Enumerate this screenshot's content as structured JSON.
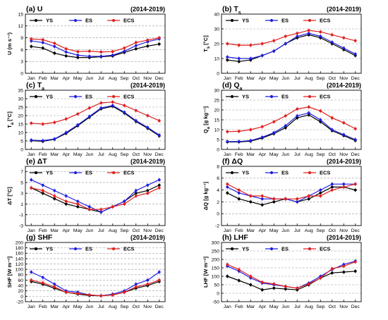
{
  "series_names": [
    "YS",
    "ES",
    "ECS"
  ],
  "colors": {
    "YS": "#000000",
    "ES": "#1f1fe0",
    "ECS": "#e02020"
  },
  "period": "(2014-2019)",
  "chart_data": [
    {
      "type": "line",
      "title": "(a) U",
      "ylabel": "U (m s⁻¹)",
      "ylim": [
        0,
        15
      ],
      "yticks": [
        0,
        3,
        6,
        9,
        12,
        15
      ],
      "categories": [
        "Jan",
        "Feb",
        "Mar",
        "Apr",
        "May",
        "Jun",
        "Jul",
        "Aug",
        "Sep",
        "Oct",
        "Nov",
        "Dec"
      ],
      "series": [
        {
          "name": "YS",
          "values": [
            6.8,
            6.4,
            5.1,
            4.4,
            4.0,
            4.0,
            4.2,
            4.4,
            5.3,
            6.2,
            6.9,
            7.4
          ]
        },
        {
          "name": "ES",
          "values": [
            8.2,
            7.8,
            6.8,
            5.4,
            4.6,
            4.3,
            4.3,
            4.6,
            5.6,
            7.0,
            8.0,
            8.7
          ]
        },
        {
          "name": "ECS",
          "values": [
            8.7,
            8.5,
            7.6,
            6.2,
            5.5,
            5.6,
            5.4,
            5.5,
            6.4,
            7.8,
            8.4,
            9.0
          ]
        }
      ],
      "legend": "top-left"
    },
    {
      "type": "line",
      "title": "(b) T",
      "title_sub": "s",
      "ylabel": "T",
      "ylabel_sub": "s",
      "ylabel_rest": " [°C]",
      "ylim": [
        0,
        40
      ],
      "yticks": [
        0,
        10,
        20,
        30,
        40
      ],
      "categories": [
        "Jan",
        "Feb",
        "Mar",
        "Apr",
        "May",
        "Jun",
        "Jul",
        "Aug",
        "Sep",
        "Oct",
        "Nov",
        "Dec"
      ],
      "series": [
        {
          "name": "YS",
          "values": [
            9,
            8,
            9,
            12,
            15,
            20,
            24,
            26,
            24,
            20,
            16,
            12
          ]
        },
        {
          "name": "ES",
          "values": [
            11,
            10,
            10,
            12,
            15,
            20,
            25,
            27,
            25,
            21,
            17,
            13
          ]
        },
        {
          "name": "ECS",
          "values": [
            20,
            19,
            19,
            20,
            22,
            25,
            27,
            29,
            28,
            26,
            24,
            22
          ]
        }
      ],
      "legend": "top-left"
    },
    {
      "type": "line",
      "title": "(c) T",
      "title_sub": "a",
      "ylabel": "T",
      "ylabel_sub": "a",
      "ylabel_rest": " [°C]",
      "ylim": [
        0,
        35
      ],
      "yticks": [
        0,
        5,
        10,
        15,
        20,
        25,
        30,
        35
      ],
      "categories": [
        "Jan",
        "Feb",
        "Mar",
        "Apr",
        "May",
        "Jun",
        "Jul",
        "Aug",
        "Sep",
        "Oct",
        "Nov",
        "Dec"
      ],
      "series": [
        {
          "name": "YS",
          "values": [
            5.2,
            4.8,
            6.0,
            9.5,
            14,
            19,
            24,
            25.5,
            21.5,
            16.5,
            12.5,
            8
          ]
        },
        {
          "name": "ES",
          "values": [
            5.5,
            5.2,
            6.2,
            10,
            14.5,
            19.5,
            24.5,
            26,
            22,
            17,
            13,
            8.5
          ]
        },
        {
          "name": "ECS",
          "values": [
            15.5,
            15,
            16,
            18,
            21,
            24.5,
            27.5,
            28,
            26,
            23,
            20,
            17
          ]
        }
      ],
      "legend": "top-left"
    },
    {
      "type": "line",
      "title": "(d) Q",
      "title_sub": "a",
      "ylabel": "Q",
      "ylabel_sub": "a",
      "ylabel_rest": " [g kg⁻¹]",
      "ylim": [
        0,
        30
      ],
      "yticks": [
        0,
        5,
        10,
        15,
        20,
        25,
        30
      ],
      "categories": [
        "Jan",
        "Feb",
        "Mar",
        "Apr",
        "May",
        "Jun",
        "Jul",
        "Aug",
        "Sep",
        "Oct",
        "Nov",
        "Dec"
      ],
      "series": [
        {
          "name": "YS",
          "values": [
            3.8,
            3.8,
            4.2,
            5.8,
            8,
            11,
            16,
            17.5,
            14,
            9.5,
            7,
            4.5
          ]
        },
        {
          "name": "ES",
          "values": [
            4.0,
            4.0,
            4.5,
            6.2,
            8.5,
            12,
            17,
            18.5,
            15,
            10,
            7.5,
            5
          ]
        },
        {
          "name": "ECS",
          "values": [
            9,
            9.2,
            10,
            11.5,
            14,
            17,
            20.5,
            21.5,
            19.5,
            16,
            13.5,
            10.5
          ]
        }
      ],
      "legend": "top-left"
    },
    {
      "type": "line",
      "title": "(e) ΔT",
      "ylabel": "ΔT [°C]",
      "ylim": [
        -3,
        8
      ],
      "yticks": [
        -3,
        -1,
        1,
        3,
        5,
        7
      ],
      "categories": [
        "Jan",
        "Feb",
        "Mar",
        "Apr",
        "May",
        "Jun",
        "Jul",
        "Aug",
        "Sep",
        "Oct",
        "Nov",
        "Dec"
      ],
      "series": [
        {
          "name": "YS",
          "values": [
            4.0,
            3.0,
            2.0,
            1.0,
            0.5,
            0.0,
            -0.5,
            0.5,
            1.5,
            3.0,
            3.5,
            4.5
          ]
        },
        {
          "name": "ES",
          "values": [
            5.5,
            4.5,
            3.5,
            2.5,
            1.5,
            0.5,
            -0.5,
            0.5,
            1.5,
            3.5,
            4.5,
            5.5
          ]
        },
        {
          "name": "ECS",
          "values": [
            4.0,
            3.5,
            2.5,
            1.5,
            1.0,
            0.0,
            0.0,
            0.5,
            1.0,
            2.5,
            3.0,
            4.0
          ]
        }
      ],
      "legend": "top-left"
    },
    {
      "type": "line",
      "title": "(f) ΔQ",
      "ylabel": "ΔQ [g kg⁻¹]",
      "ylim": [
        -2,
        8
      ],
      "yticks": [
        -2,
        0,
        2,
        4,
        6,
        8
      ],
      "categories": [
        "Jan",
        "Feb",
        "Mar",
        "Apr",
        "May",
        "Jun",
        "Jul",
        "Aug",
        "Sep",
        "Oct",
        "Nov",
        "Dec"
      ],
      "series": [
        {
          "name": "YS",
          "values": [
            3.5,
            2.5,
            2.0,
            1.5,
            2.0,
            2.5,
            2.0,
            2.5,
            3.5,
            4.5,
            4.5,
            4.0
          ]
        },
        {
          "name": "ES",
          "values": [
            4.5,
            3.5,
            3.0,
            2.5,
            2.5,
            2.5,
            2.0,
            3.0,
            4.0,
            5.0,
            5.0,
            5.0
          ]
        },
        {
          "name": "ECS",
          "values": [
            5.0,
            4.0,
            3.0,
            3.0,
            2.5,
            2.5,
            2.5,
            3.0,
            3.0,
            4.0,
            4.5,
            5.0
          ]
        }
      ],
      "legend": "top-left"
    },
    {
      "type": "line",
      "title": "(g) SHF",
      "ylabel": "SHF [W m⁻²]",
      "ylim": [
        -20,
        200
      ],
      "yticks": [
        -20,
        0,
        20,
        40,
        60,
        80,
        100,
        120,
        140,
        160,
        180,
        200
      ],
      "categories": [
        "Jan",
        "Feb",
        "Mar",
        "Apr",
        "May",
        "Jun",
        "Jul",
        "Aug",
        "Sep",
        "Oct",
        "Nov",
        "Dec"
      ],
      "series": [
        {
          "name": "YS",
          "values": [
            55,
            45,
            30,
            15,
            8,
            3,
            2,
            5,
            15,
            30,
            40,
            55
          ]
        },
        {
          "name": "ES",
          "values": [
            90,
            70,
            45,
            20,
            15,
            5,
            2,
            8,
            20,
            45,
            60,
            90
          ]
        },
        {
          "name": "ECS",
          "values": [
            60,
            50,
            35,
            15,
            10,
            5,
            2,
            5,
            15,
            35,
            45,
            60
          ]
        }
      ],
      "legend": "top-left"
    },
    {
      "type": "line",
      "title": "(h) LHF",
      "ylabel": "LHF [W m⁻²]",
      "ylim": [
        -50,
        300
      ],
      "yticks": [
        -50,
        0,
        50,
        100,
        150,
        200,
        250,
        300
      ],
      "categories": [
        "Jan",
        "Feb",
        "Mar",
        "Apr",
        "May",
        "Jun",
        "Jul",
        "Aug",
        "Sep",
        "Oct",
        "Nov",
        "Dec"
      ],
      "series": [
        {
          "name": "YS",
          "values": [
            100,
            75,
            50,
            20,
            30,
            25,
            20,
            50,
            90,
            120,
            125,
            130
          ]
        },
        {
          "name": "ES",
          "values": [
            160,
            130,
            90,
            60,
            50,
            40,
            30,
            60,
            100,
            140,
            170,
            190
          ]
        },
        {
          "name": "ECS",
          "values": [
            170,
            140,
            100,
            65,
            55,
            40,
            30,
            55,
            90,
            145,
            160,
            185
          ]
        }
      ],
      "legend": "top-left"
    }
  ]
}
